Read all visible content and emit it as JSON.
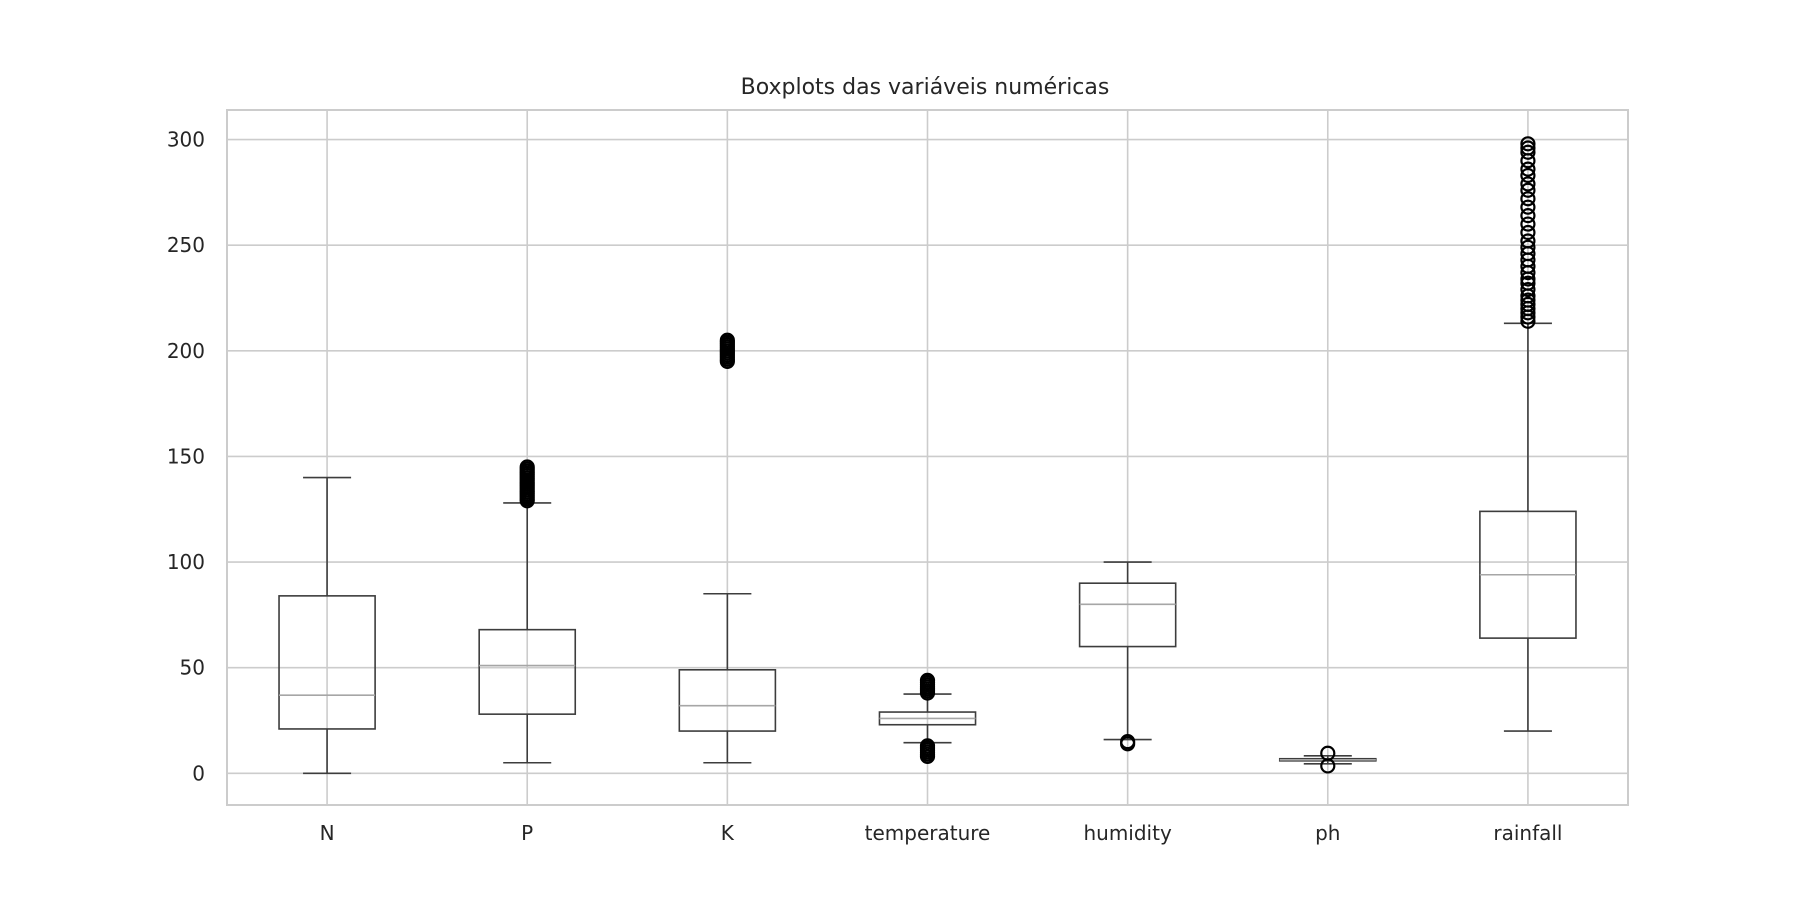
{
  "chart_data": {
    "type": "boxplot",
    "title": "Boxplots das variáveis numéricas",
    "xlabel": "",
    "ylabel": "",
    "ylim": [
      -15,
      314
    ],
    "yticks": [
      0,
      50,
      100,
      150,
      200,
      250,
      300
    ],
    "grid": true,
    "colors": {
      "box": "#3d3d3d",
      "median": "#a6a6a6",
      "grid": "#cccccc",
      "spine": "#cccccc",
      "outlier": "#000000"
    },
    "categories": [
      "N",
      "P",
      "K",
      "temperature",
      "humidity",
      "ph",
      "rainfall"
    ],
    "boxes": [
      {
        "name": "N",
        "whislo": 0,
        "q1": 21,
        "med": 37,
        "q3": 84,
        "whishi": 140,
        "fliers": []
      },
      {
        "name": "P",
        "whislo": 5,
        "q1": 28,
        "med": 51,
        "q3": 68,
        "whishi": 128,
        "fliers": [
          129,
          130,
          131,
          132,
          133,
          134,
          135,
          136,
          137,
          138,
          139,
          140,
          141,
          142,
          143,
          144,
          145
        ]
      },
      {
        "name": "K",
        "whislo": 5,
        "q1": 20,
        "med": 32,
        "q3": 49,
        "whishi": 85,
        "fliers": [
          195,
          196,
          197,
          198,
          199,
          200,
          201,
          202,
          203,
          204,
          205
        ]
      },
      {
        "name": "temperature",
        "whislo": 14.5,
        "q1": 23,
        "med": 26,
        "q3": 29,
        "whishi": 37.5,
        "fliers": [
          8,
          9,
          10,
          11,
          12,
          13,
          38,
          39,
          40,
          41,
          42,
          43,
          44
        ]
      },
      {
        "name": "humidity",
        "whislo": 16,
        "q1": 60,
        "med": 80,
        "q3": 90,
        "whishi": 100,
        "fliers": [
          14,
          15
        ]
      },
      {
        "name": "ph",
        "whislo": 4.5,
        "q1": 5.9,
        "med": 6.4,
        "q3": 6.9,
        "whishi": 8.3,
        "fliers": [
          3.5,
          9.5
        ]
      },
      {
        "name": "rainfall",
        "whislo": 20,
        "q1": 64,
        "med": 94,
        "q3": 124,
        "whishi": 213,
        "fliers": [
          214,
          216,
          218,
          220,
          222,
          224,
          226,
          229,
          232,
          234,
          237,
          240,
          243,
          246,
          249,
          252,
          256,
          260,
          264,
          268,
          272,
          276,
          279,
          283,
          286,
          290,
          294,
          296,
          298
        ]
      }
    ]
  }
}
